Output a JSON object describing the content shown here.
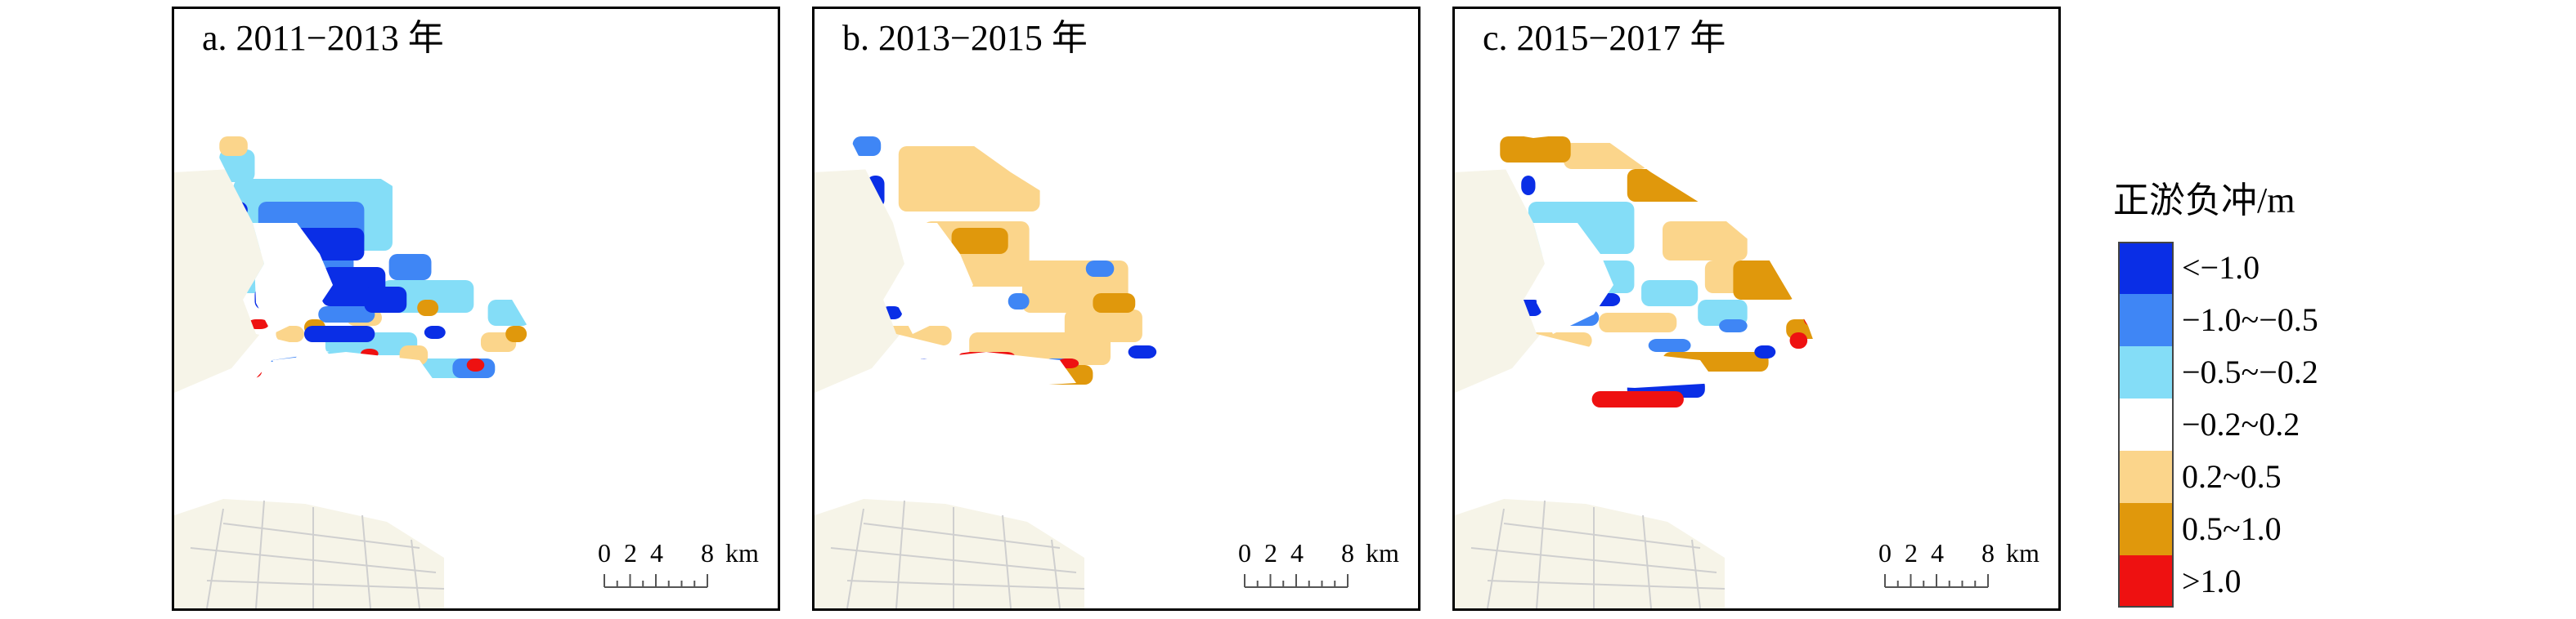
{
  "panels": [
    {
      "title": "a. 2011−2013 年",
      "cells": {
        "vneg": [
          [
            0.25,
            0.3,
            0.2,
            0.1
          ],
          [
            0.33,
            0.42,
            0.18,
            0.12
          ],
          [
            0.45,
            0.48,
            0.12,
            0.08
          ],
          [
            0.07,
            0.22,
            0.05,
            0.05
          ],
          [
            0.14,
            0.48,
            0.1,
            0.07
          ],
          [
            0.28,
            0.6,
            0.2,
            0.05
          ],
          [
            0.38,
            0.73,
            0.15,
            0.05
          ],
          [
            0.62,
            0.6,
            0.06,
            0.04
          ]
        ],
        "neg": [
          [
            0.15,
            0.22,
            0.3,
            0.14
          ],
          [
            0.2,
            0.36,
            0.22,
            0.1
          ],
          [
            0.52,
            0.38,
            0.12,
            0.08
          ],
          [
            0.32,
            0.54,
            0.16,
            0.05
          ],
          [
            0.1,
            0.66,
            0.16,
            0.05
          ],
          [
            0.7,
            0.7,
            0.12,
            0.06
          ]
        ],
        "mneg": [
          [
            0.08,
            0.15,
            0.45,
            0.22
          ],
          [
            0.1,
            0.4,
            0.1,
            0.1
          ],
          [
            0.5,
            0.46,
            0.26,
            0.1
          ],
          [
            0.34,
            0.62,
            0.26,
            0.07
          ],
          [
            0.6,
            0.7,
            0.22,
            0.06
          ],
          [
            0.04,
            0.06,
            0.1,
            0.1
          ],
          [
            0.8,
            0.52,
            0.12,
            0.08
          ]
        ],
        "lpos": [
          [
            0.04,
            0.02,
            0.08,
            0.06
          ],
          [
            0.4,
            0.55,
            0.1,
            0.05
          ],
          [
            0.78,
            0.62,
            0.1,
            0.06
          ],
          [
            0.55,
            0.66,
            0.08,
            0.06
          ],
          [
            0.2,
            0.6,
            0.08,
            0.05
          ]
        ],
        "mpos": [
          [
            0.6,
            0.52,
            0.06,
            0.05
          ],
          [
            0.28,
            0.58,
            0.06,
            0.05
          ],
          [
            0.85,
            0.6,
            0.06,
            0.05
          ],
          [
            0.5,
            0.72,
            0.08,
            0.04
          ]
        ],
        "hpos": [
          [
            0.08,
            0.72,
            0.08,
            0.04
          ],
          [
            0.12,
            0.58,
            0.06,
            0.03
          ],
          [
            0.74,
            0.7,
            0.05,
            0.04
          ],
          [
            0.44,
            0.67,
            0.05,
            0.03
          ]
        ]
      }
    },
    {
      "title": "b. 2013−2015 年",
      "cells": {
        "vneg": [
          [
            0.06,
            0.14,
            0.05,
            0.1
          ],
          [
            0.2,
            0.7,
            0.1,
            0.04
          ],
          [
            0.8,
            0.66,
            0.08,
            0.04
          ],
          [
            0.1,
            0.54,
            0.06,
            0.04
          ]
        ],
        "neg": [
          [
            0.02,
            0.02,
            0.08,
            0.06
          ],
          [
            0.46,
            0.5,
            0.06,
            0.05
          ],
          [
            0.56,
            0.7,
            0.1,
            0.04
          ],
          [
            0.68,
            0.4,
            0.08,
            0.05
          ]
        ],
        "mneg": [
          [
            0.3,
            0.4,
            0.12,
            0.06
          ],
          [
            0.05,
            0.3,
            0.05,
            0.08
          ],
          [
            0.72,
            0.58,
            0.1,
            0.05
          ]
        ],
        "lpos": [
          [
            0.15,
            0.05,
            0.4,
            0.2
          ],
          [
            0.22,
            0.28,
            0.3,
            0.2
          ],
          [
            0.5,
            0.4,
            0.3,
            0.16
          ],
          [
            0.35,
            0.62,
            0.4,
            0.1
          ],
          [
            0.62,
            0.55,
            0.22,
            0.1
          ],
          [
            0.1,
            0.6,
            0.2,
            0.06
          ]
        ],
        "mpos": [
          [
            0.3,
            0.3,
            0.16,
            0.08
          ],
          [
            0.4,
            0.72,
            0.3,
            0.06
          ],
          [
            0.7,
            0.5,
            0.12,
            0.06
          ],
          [
            0.18,
            0.5,
            0.12,
            0.06
          ]
        ],
        "hpos": [
          [
            0.03,
            0.5,
            0.05,
            0.06
          ],
          [
            0.32,
            0.68,
            0.16,
            0.03
          ],
          [
            0.26,
            0.48,
            0.08,
            0.04
          ],
          [
            0.6,
            0.7,
            0.06,
            0.03
          ]
        ]
      }
    },
    {
      "title": "c. 2015−2017 年",
      "cells": {
        "vneg": [
          [
            0.1,
            0.14,
            0.04,
            0.06
          ],
          [
            0.06,
            0.52,
            0.1,
            0.05
          ],
          [
            0.4,
            0.76,
            0.22,
            0.06
          ],
          [
            0.76,
            0.66,
            0.06,
            0.04
          ],
          [
            0.3,
            0.5,
            0.08,
            0.04
          ]
        ],
        "neg": [
          [
            0.2,
            0.55,
            0.12,
            0.05
          ],
          [
            0.46,
            0.64,
            0.12,
            0.04
          ],
          [
            0.66,
            0.58,
            0.08,
            0.04
          ]
        ],
        "mneg": [
          [
            0.12,
            0.22,
            0.3,
            0.16
          ],
          [
            0.2,
            0.4,
            0.22,
            0.1
          ],
          [
            0.44,
            0.46,
            0.16,
            0.08
          ],
          [
            0.6,
            0.52,
            0.14,
            0.08
          ]
        ],
        "lpos": [
          [
            0.22,
            0.04,
            0.24,
            0.08
          ],
          [
            0.5,
            0.28,
            0.24,
            0.12
          ],
          [
            0.32,
            0.56,
            0.22,
            0.06
          ],
          [
            0.1,
            0.62,
            0.2,
            0.05
          ],
          [
            0.62,
            0.4,
            0.16,
            0.1
          ]
        ],
        "mpos": [
          [
            0.04,
            0.02,
            0.2,
            0.08
          ],
          [
            0.4,
            0.12,
            0.22,
            0.1
          ],
          [
            0.7,
            0.4,
            0.18,
            0.12
          ],
          [
            0.5,
            0.68,
            0.3,
            0.06
          ],
          [
            0.3,
            0.72,
            0.12,
            0.04
          ],
          [
            0.85,
            0.58,
            0.1,
            0.06
          ]
        ],
        "hpos": [
          [
            0.3,
            0.8,
            0.26,
            0.05
          ],
          [
            0.86,
            0.62,
            0.05,
            0.05
          ],
          [
            0.16,
            0.66,
            0.06,
            0.03
          ],
          [
            0.9,
            0.56,
            0.04,
            0.04
          ]
        ]
      }
    }
  ],
  "scalebar": {
    "ticks": [
      "0",
      "2",
      "4",
      "8"
    ],
    "unit": "km"
  },
  "legend": {
    "title": "正淤负冲/m",
    "items": [
      {
        "label": "<−1.0",
        "color": "#0a2ee6"
      },
      {
        "label": "−1.0~−0.5",
        "color": "#3f86f5"
      },
      {
        "label": "−0.5~−0.2",
        "color": "#84ddf7"
      },
      {
        "label": "−0.2~0.2",
        "color": "#ffffff"
      },
      {
        "label": "0.2~0.5",
        "color": "#fbd58b"
      },
      {
        "label": "0.5~1.0",
        "color": "#e0980c"
      },
      {
        "label": ">1.0",
        "color": "#ee1111"
      }
    ]
  },
  "colors": {
    "land": "#f6f4e8",
    "roads": "#cfcfcf"
  }
}
